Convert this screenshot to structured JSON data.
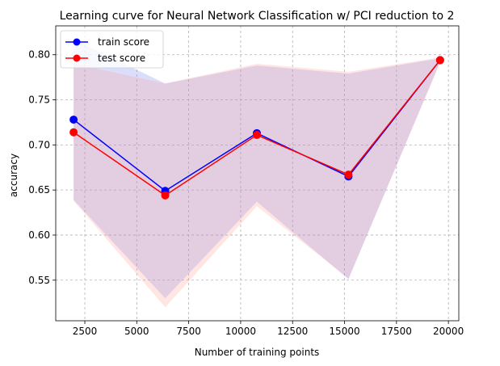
{
  "chart_data": {
    "type": "line",
    "title": "Learning curve for Neural Network Classification w/ PCI reduction to 2",
    "xlabel": "Number of training points",
    "ylabel": "accuracy",
    "xlim": [
      1100,
      20500
    ],
    "ylim": [
      0.505,
      0.832
    ],
    "xticks": [
      2500,
      5000,
      7500,
      10000,
      12500,
      15000,
      17500,
      20000
    ],
    "xtick_labels": [
      "2500",
      "5000",
      "7500",
      "10000",
      "12500",
      "15000",
      "17500",
      "20000"
    ],
    "yticks": [
      0.55,
      0.6,
      0.65,
      0.7,
      0.75,
      0.8
    ],
    "ytick_labels": [
      "0.55",
      "0.60",
      "0.65",
      "0.70",
      "0.75",
      "0.80"
    ],
    "grid": true,
    "legend_position": "top-left",
    "x": [
      1960,
      6370,
      10780,
      15190,
      19600
    ],
    "series": [
      {
        "name": "train score",
        "color": "#0000ff",
        "band_color": "#6a7cf0",
        "values": [
          0.728,
          0.649,
          0.713,
          0.665,
          0.794
        ],
        "band_upper": [
          0.817,
          0.768,
          0.788,
          0.779,
          0.796
        ],
        "band_lower": [
          0.639,
          0.53,
          0.637,
          0.551,
          0.792
        ]
      },
      {
        "name": "test score",
        "color": "#ff0000",
        "band_color": "#ff9a90",
        "values": [
          0.714,
          0.644,
          0.711,
          0.667,
          0.794
        ],
        "band_upper": [
          0.79,
          0.768,
          0.79,
          0.781,
          0.797
        ],
        "band_lower": [
          0.638,
          0.52,
          0.632,
          0.552,
          0.791
        ]
      }
    ]
  }
}
